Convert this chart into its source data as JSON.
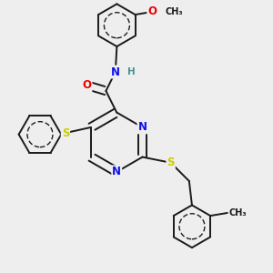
{
  "bg_color": "#eeeeee",
  "bond_color": "#1a1a1a",
  "bond_width": 1.4,
  "atom_colors": {
    "N": "#1010ee",
    "O": "#ee0000",
    "S": "#cccc00",
    "C": "#1a1a1a",
    "H": "#4a9090"
  },
  "font_size_atom": 8.5,
  "font_size_H": 7.5,
  "font_size_small": 7.0
}
